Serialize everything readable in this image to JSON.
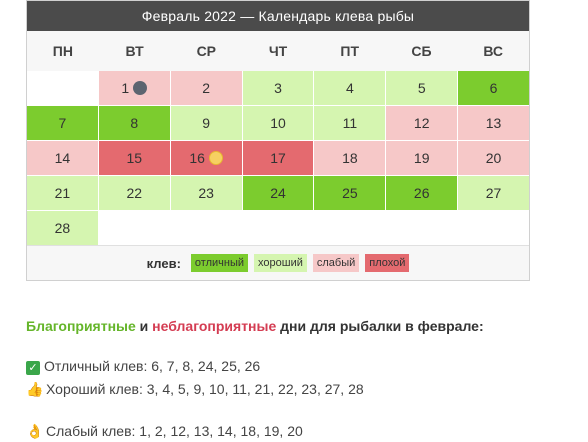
{
  "calendar": {
    "title": "Февраль 2022 — Календарь клева рыбы",
    "weekdays": [
      "ПН",
      "ВТ",
      "СР",
      "ЧТ",
      "ПТ",
      "СБ",
      "ВС"
    ],
    "cells": [
      {
        "day": "",
        "status": "empty"
      },
      {
        "day": "1",
        "status": "weak",
        "moon": "new"
      },
      {
        "day": "2",
        "status": "weak"
      },
      {
        "day": "3",
        "status": "good"
      },
      {
        "day": "4",
        "status": "good"
      },
      {
        "day": "5",
        "status": "good"
      },
      {
        "day": "6",
        "status": "excellent"
      },
      {
        "day": "7",
        "status": "excellent"
      },
      {
        "day": "8",
        "status": "excellent"
      },
      {
        "day": "9",
        "status": "good"
      },
      {
        "day": "10",
        "status": "good"
      },
      {
        "day": "11",
        "status": "good"
      },
      {
        "day": "12",
        "status": "weak"
      },
      {
        "day": "13",
        "status": "weak"
      },
      {
        "day": "14",
        "status": "weak"
      },
      {
        "day": "15",
        "status": "bad"
      },
      {
        "day": "16",
        "status": "bad",
        "moon": "full"
      },
      {
        "day": "17",
        "status": "bad"
      },
      {
        "day": "18",
        "status": "weak"
      },
      {
        "day": "19",
        "status": "weak"
      },
      {
        "day": "20",
        "status": "weak"
      },
      {
        "day": "21",
        "status": "good"
      },
      {
        "day": "22",
        "status": "good"
      },
      {
        "day": "23",
        "status": "good"
      },
      {
        "day": "24",
        "status": "excellent"
      },
      {
        "day": "25",
        "status": "excellent"
      },
      {
        "day": "26",
        "status": "excellent"
      },
      {
        "day": "27",
        "status": "good"
      },
      {
        "day": "28",
        "status": "good"
      },
      {
        "day": "",
        "status": "empty"
      },
      {
        "day": "",
        "status": "empty"
      },
      {
        "day": "",
        "status": "empty"
      },
      {
        "day": "",
        "status": "empty"
      },
      {
        "day": "",
        "status": "empty"
      },
      {
        "day": "",
        "status": "empty"
      }
    ],
    "legend": {
      "title": "клев:",
      "excellent": "отличный",
      "good": "хороший",
      "weak": "слабый",
      "bad": "плохой"
    },
    "colors": {
      "excellent": "#7ccc2e",
      "good": "#d5f5b0",
      "weak": "#f6c8c8",
      "bad": "#e46a6f"
    }
  },
  "summary": {
    "fav": "Благоприятные",
    "and": " и ",
    "unfav": "неблагоприятные",
    "rest": " дни для рыбалки в феврале:",
    "excellent_line": "Отличный клев: 6, 7, 8, 24, 25, 26",
    "good_line": "Хороший клев: 3, 4, 5, 9, 10, 11, 21, 22, 23, 27, 28",
    "weak_line": "Слабый клев: 1, 2, 12, 13, 14, 18, 19, 20",
    "icons": [
      "check-icon",
      "thumbs-up-icon",
      "ok-hand-icon"
    ]
  }
}
